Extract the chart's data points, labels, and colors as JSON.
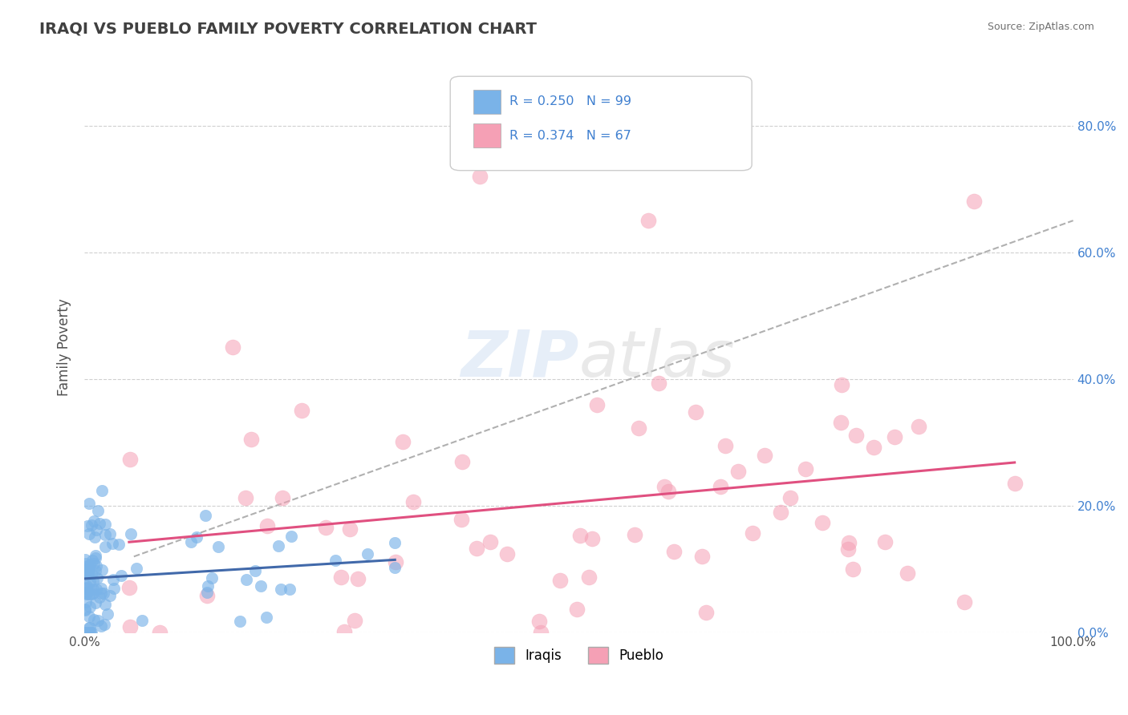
{
  "title": "IRAQI VS PUEBLO FAMILY POVERTY CORRELATION CHART",
  "source": "Source: ZipAtlas.com",
  "ylabel": "Family Poverty",
  "ytick_labels": [
    "0.0%",
    "20.0%",
    "40.0%",
    "60.0%",
    "80.0%"
  ],
  "ytick_values": [
    0.0,
    0.2,
    0.4,
    0.6,
    0.8
  ],
  "xlim": [
    0.0,
    1.0
  ],
  "ylim": [
    0.0,
    0.9
  ],
  "legend_labels": [
    "Iraqis",
    "Pueblo"
  ],
  "iraqis_R": 0.25,
  "iraqis_N": 99,
  "pueblo_R": 0.374,
  "pueblo_N": 67,
  "iraqis_color": "#7ab3e8",
  "pueblo_color": "#f5a0b5",
  "iraqis_line_color": "#4169aa",
  "pueblo_line_color": "#e05080",
  "dashed_line_color": "#b0b0b0",
  "background_color": "#ffffff",
  "grid_color": "#d0d0d0",
  "title_color": "#404040"
}
